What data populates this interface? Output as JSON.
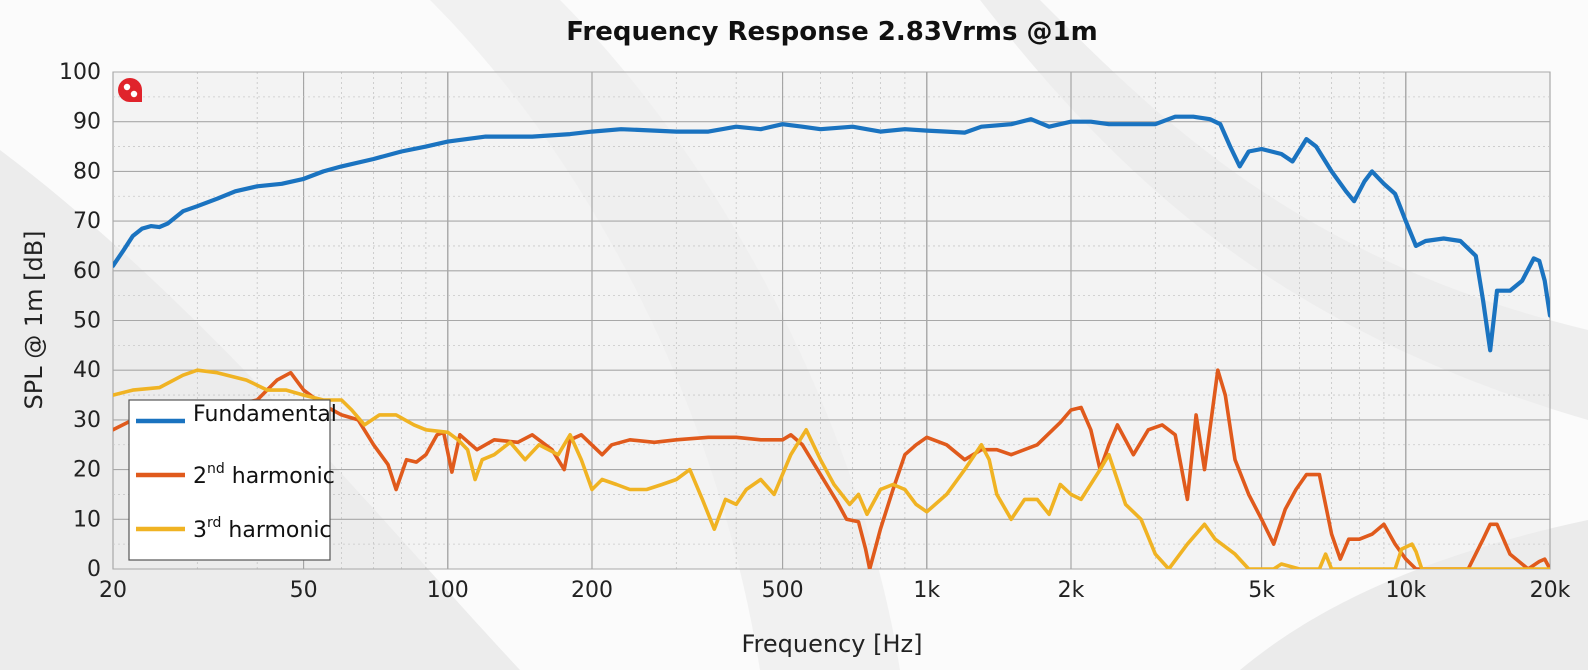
{
  "chart_data": {
    "type": "line",
    "title": "Frequency Response 2.83Vrms @1m",
    "xlabel": "Frequency [Hz]",
    "ylabel": "SPL @ 1m [dB]",
    "xscale": "log",
    "xlim": [
      20,
      20000
    ],
    "ylim": [
      0,
      100
    ],
    "x_ticks": [
      {
        "value": 20,
        "label": "20"
      },
      {
        "value": 50,
        "label": "50"
      },
      {
        "value": 100,
        "label": "100"
      },
      {
        "value": 200,
        "label": "200"
      },
      {
        "value": 500,
        "label": "500"
      },
      {
        "value": 1000,
        "label": "1k"
      },
      {
        "value": 2000,
        "label": "2k"
      },
      {
        "value": 5000,
        "label": "5k"
      },
      {
        "value": 10000,
        "label": "10k"
      },
      {
        "value": 20000,
        "label": "20k"
      }
    ],
    "y_ticks": [
      0,
      10,
      20,
      30,
      40,
      50,
      60,
      70,
      80,
      90,
      100
    ],
    "grid": true,
    "legend_position": "bottom-left",
    "series": [
      {
        "name": "Fundamental",
        "legend_main": "Fundamental",
        "legend_sup": "",
        "legend_tail": "",
        "color": "#1a73c0",
        "points": [
          [
            20,
            61
          ],
          [
            21,
            64
          ],
          [
            22,
            67
          ],
          [
            23,
            68.5
          ],
          [
            24,
            69
          ],
          [
            25,
            68.8
          ],
          [
            26,
            69.5
          ],
          [
            28,
            72
          ],
          [
            30,
            73
          ],
          [
            33,
            74.5
          ],
          [
            36,
            76
          ],
          [
            40,
            77
          ],
          [
            45,
            77.5
          ],
          [
            50,
            78.5
          ],
          [
            55,
            80
          ],
          [
            60,
            81
          ],
          [
            70,
            82.5
          ],
          [
            80,
            84
          ],
          [
            90,
            85
          ],
          [
            100,
            86
          ],
          [
            120,
            87
          ],
          [
            150,
            87
          ],
          [
            180,
            87.5
          ],
          [
            200,
            88
          ],
          [
            230,
            88.5
          ],
          [
            270,
            88.2
          ],
          [
            300,
            88
          ],
          [
            350,
            88
          ],
          [
            400,
            89
          ],
          [
            450,
            88.5
          ],
          [
            500,
            89.5
          ],
          [
            550,
            89
          ],
          [
            600,
            88.5
          ],
          [
            700,
            89
          ],
          [
            800,
            88
          ],
          [
            900,
            88.5
          ],
          [
            1000,
            88.2
          ],
          [
            1100,
            88
          ],
          [
            1200,
            87.8
          ],
          [
            1300,
            89
          ],
          [
            1500,
            89.5
          ],
          [
            1650,
            90.5
          ],
          [
            1800,
            89
          ],
          [
            2000,
            90
          ],
          [
            2200,
            90
          ],
          [
            2400,
            89.5
          ],
          [
            2700,
            89.5
          ],
          [
            3000,
            89.5
          ],
          [
            3300,
            91
          ],
          [
            3600,
            91
          ],
          [
            3900,
            90.5
          ],
          [
            4100,
            89.5
          ],
          [
            4300,
            85
          ],
          [
            4500,
            81
          ],
          [
            4700,
            84
          ],
          [
            5000,
            84.5
          ],
          [
            5500,
            83.5
          ],
          [
            5800,
            82
          ],
          [
            6200,
            86.5
          ],
          [
            6500,
            85
          ],
          [
            7000,
            80
          ],
          [
            7500,
            76
          ],
          [
            7800,
            74
          ],
          [
            8200,
            78
          ],
          [
            8500,
            80
          ],
          [
            9000,
            77.5
          ],
          [
            9500,
            75.5
          ],
          [
            10000,
            70
          ],
          [
            10500,
            65
          ],
          [
            11000,
            66
          ],
          [
            12000,
            66.5
          ],
          [
            13000,
            66
          ],
          [
            14000,
            63
          ],
          [
            14500,
            54
          ],
          [
            15000,
            44
          ],
          [
            15500,
            56
          ],
          [
            16500,
            56
          ],
          [
            17500,
            58
          ],
          [
            18500,
            62.5
          ],
          [
            19000,
            62
          ],
          [
            19500,
            58
          ],
          [
            20000,
            51
          ]
        ]
      },
      {
        "name": "2nd harmonic",
        "legend_main": "2",
        "legend_sup": "nd",
        "legend_tail": " harmonic",
        "color": "#e05a1c",
        "points": [
          [
            20,
            28
          ],
          [
            22,
            30
          ],
          [
            25,
            31
          ],
          [
            28,
            31
          ],
          [
            32,
            33
          ],
          [
            36,
            33
          ],
          [
            40,
            34
          ],
          [
            44,
            38
          ],
          [
            47,
            39.5
          ],
          [
            50,
            36
          ],
          [
            55,
            33
          ],
          [
            60,
            31
          ],
          [
            65,
            30
          ],
          [
            70,
            25
          ],
          [
            75,
            21
          ],
          [
            78,
            16
          ],
          [
            82,
            22
          ],
          [
            86,
            21.5
          ],
          [
            90,
            23
          ],
          [
            95,
            27
          ],
          [
            98,
            27.5
          ],
          [
            102,
            19.5
          ],
          [
            106,
            27
          ],
          [
            115,
            24
          ],
          [
            125,
            26
          ],
          [
            140,
            25.5
          ],
          [
            150,
            27
          ],
          [
            165,
            24
          ],
          [
            175,
            20
          ],
          [
            180,
            26
          ],
          [
            190,
            27
          ],
          [
            210,
            23
          ],
          [
            220,
            25
          ],
          [
            240,
            26
          ],
          [
            270,
            25.5
          ],
          [
            300,
            26
          ],
          [
            350,
            26.5
          ],
          [
            400,
            26.5
          ],
          [
            450,
            26
          ],
          [
            500,
            26
          ],
          [
            520,
            27
          ],
          [
            550,
            25
          ],
          [
            600,
            19
          ],
          [
            650,
            13.5
          ],
          [
            680,
            10
          ],
          [
            720,
            9.5
          ],
          [
            745,
            4
          ],
          [
            760,
            0
          ],
          [
            780,
            4
          ],
          [
            800,
            8
          ],
          [
            850,
            16
          ],
          [
            900,
            23
          ],
          [
            950,
            25
          ],
          [
            1000,
            26.5
          ],
          [
            1100,
            25
          ],
          [
            1200,
            22
          ],
          [
            1300,
            24
          ],
          [
            1400,
            24
          ],
          [
            1500,
            23
          ],
          [
            1700,
            25
          ],
          [
            1900,
            29.5
          ],
          [
            2000,
            32
          ],
          [
            2100,
            32.5
          ],
          [
            2200,
            28
          ],
          [
            2300,
            20
          ],
          [
            2400,
            25
          ],
          [
            2500,
            29
          ],
          [
            2700,
            23
          ],
          [
            2900,
            28
          ],
          [
            3100,
            29
          ],
          [
            3300,
            27
          ],
          [
            3500,
            14
          ],
          [
            3650,
            31
          ],
          [
            3800,
            20
          ],
          [
            4050,
            40
          ],
          [
            4200,
            35
          ],
          [
            4400,
            22
          ],
          [
            4700,
            15
          ],
          [
            5000,
            10
          ],
          [
            5300,
            5
          ],
          [
            5600,
            12
          ],
          [
            5900,
            16
          ],
          [
            6200,
            19
          ],
          [
            6600,
            19
          ],
          [
            7000,
            7
          ],
          [
            7300,
            2
          ],
          [
            7600,
            6
          ],
          [
            8000,
            6
          ],
          [
            8500,
            7
          ],
          [
            9000,
            9
          ],
          [
            9500,
            5
          ],
          [
            10000,
            2
          ],
          [
            10500,
            0
          ],
          [
            13500,
            0
          ],
          [
            14500,
            6
          ],
          [
            15000,
            9
          ],
          [
            15500,
            9
          ],
          [
            16500,
            3
          ],
          [
            18000,
            0
          ],
          [
            19000,
            1.5
          ],
          [
            19500,
            2
          ],
          [
            20000,
            0
          ]
        ]
      },
      {
        "name": "3rd harmonic",
        "legend_main": "3",
        "legend_sup": "rd",
        "legend_tail": " harmonic",
        "color": "#f0b323",
        "points": [
          [
            20,
            35
          ],
          [
            22,
            36
          ],
          [
            25,
            36.5
          ],
          [
            28,
            39
          ],
          [
            30,
            40
          ],
          [
            33,
            39.5
          ],
          [
            38,
            38
          ],
          [
            42,
            36
          ],
          [
            46,
            36
          ],
          [
            50,
            35
          ],
          [
            55,
            34
          ],
          [
            60,
            34
          ],
          [
            63,
            32
          ],
          [
            67,
            29
          ],
          [
            72,
            31
          ],
          [
            78,
            31
          ],
          [
            85,
            29
          ],
          [
            90,
            28
          ],
          [
            100,
            27.5
          ],
          [
            105,
            26
          ],
          [
            110,
            24
          ],
          [
            114,
            18
          ],
          [
            118,
            22
          ],
          [
            125,
            23
          ],
          [
            135,
            25.5
          ],
          [
            145,
            22
          ],
          [
            155,
            25
          ],
          [
            170,
            23
          ],
          [
            180,
            27
          ],
          [
            190,
            22
          ],
          [
            200,
            16
          ],
          [
            210,
            18
          ],
          [
            225,
            17
          ],
          [
            240,
            16
          ],
          [
            260,
            16
          ],
          [
            280,
            17
          ],
          [
            300,
            18
          ],
          [
            320,
            20
          ],
          [
            340,
            14
          ],
          [
            360,
            8
          ],
          [
            380,
            14
          ],
          [
            400,
            13
          ],
          [
            420,
            16
          ],
          [
            450,
            18
          ],
          [
            480,
            15
          ],
          [
            520,
            23
          ],
          [
            560,
            28
          ],
          [
            600,
            22
          ],
          [
            640,
            17
          ],
          [
            690,
            13
          ],
          [
            720,
            15
          ],
          [
            750,
            11
          ],
          [
            800,
            16
          ],
          [
            850,
            17
          ],
          [
            900,
            16
          ],
          [
            950,
            13
          ],
          [
            1000,
            11.5
          ],
          [
            1100,
            15
          ],
          [
            1200,
            20
          ],
          [
            1300,
            25
          ],
          [
            1350,
            22
          ],
          [
            1400,
            15
          ],
          [
            1500,
            10
          ],
          [
            1600,
            14
          ],
          [
            1700,
            14
          ],
          [
            1800,
            11
          ],
          [
            1900,
            17
          ],
          [
            2000,
            15
          ],
          [
            2100,
            14
          ],
          [
            2300,
            20
          ],
          [
            2400,
            23
          ],
          [
            2600,
            13
          ],
          [
            2800,
            10
          ],
          [
            3000,
            3
          ],
          [
            3200,
            0
          ],
          [
            3500,
            5
          ],
          [
            3800,
            9
          ],
          [
            4000,
            6
          ],
          [
            4400,
            3
          ],
          [
            4700,
            0
          ],
          [
            5300,
            0
          ],
          [
            5500,
            1
          ],
          [
            6000,
            0
          ],
          [
            6600,
            0
          ],
          [
            6800,
            3
          ],
          [
            7000,
            0
          ],
          [
            9500,
            0
          ],
          [
            9800,
            4
          ],
          [
            10300,
            5
          ],
          [
            10500,
            3.5
          ],
          [
            10800,
            0
          ],
          [
            20000,
            0
          ]
        ]
      }
    ]
  }
}
